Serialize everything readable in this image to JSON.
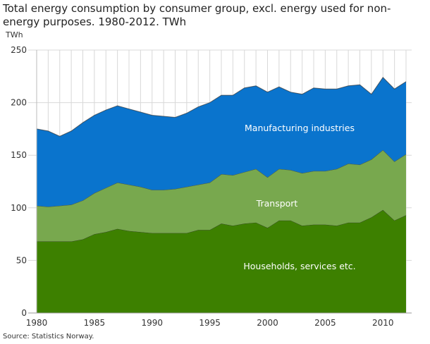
{
  "chart_data": {
    "type": "area",
    "stacked": true,
    "title": "Total energy consumption by consumer group, excl. energy used for non-energy purposes. 1980-2012. TWh",
    "ylabel": "TWh",
    "xlabel": "",
    "ylim": [
      0,
      250
    ],
    "xlim": [
      1980,
      2012
    ],
    "yticks": [
      0,
      50,
      100,
      150,
      200,
      250
    ],
    "xticks": [
      1980,
      1985,
      1990,
      1995,
      2000,
      2005,
      2010
    ],
    "grid": true,
    "x": [
      1980,
      1981,
      1982,
      1983,
      1984,
      1985,
      1986,
      1987,
      1988,
      1989,
      1990,
      1991,
      1992,
      1993,
      1994,
      1995,
      1996,
      1997,
      1998,
      1999,
      2000,
      2001,
      2002,
      2003,
      2004,
      2005,
      2006,
      2007,
      2008,
      2009,
      2010,
      2011,
      2012
    ],
    "series": [
      {
        "name": "Households, services etc.",
        "color": "#3d8000",
        "values": [
          68,
          68,
          68,
          68,
          70,
          75,
          77,
          80,
          78,
          77,
          76,
          76,
          76,
          76,
          79,
          79,
          85,
          83,
          85,
          86,
          81,
          88,
          88,
          83,
          84,
          84,
          83,
          86,
          86,
          91,
          98,
          88,
          93
        ]
      },
      {
        "name": "Transport",
        "color": "#78a84e",
        "values": [
          34,
          33,
          34,
          35,
          37,
          39,
          42,
          44,
          44,
          43,
          41,
          41,
          42,
          44,
          43,
          45,
          47,
          48,
          49,
          51,
          48,
          49,
          48,
          50,
          51,
          51,
          54,
          56,
          55,
          55,
          57,
          56,
          58
        ]
      },
      {
        "name": "Manufacturing industries",
        "color": "#0a74cd",
        "values": [
          73,
          72,
          66,
          70,
          74,
          74,
          74,
          73,
          72,
          71,
          71,
          70,
          68,
          70,
          74,
          76,
          75,
          76,
          80,
          79,
          81,
          78,
          74,
          75,
          79,
          78,
          76,
          74,
          76,
          62,
          69,
          69,
          69
        ]
      }
    ],
    "source": "Source: Statistics Norway."
  }
}
